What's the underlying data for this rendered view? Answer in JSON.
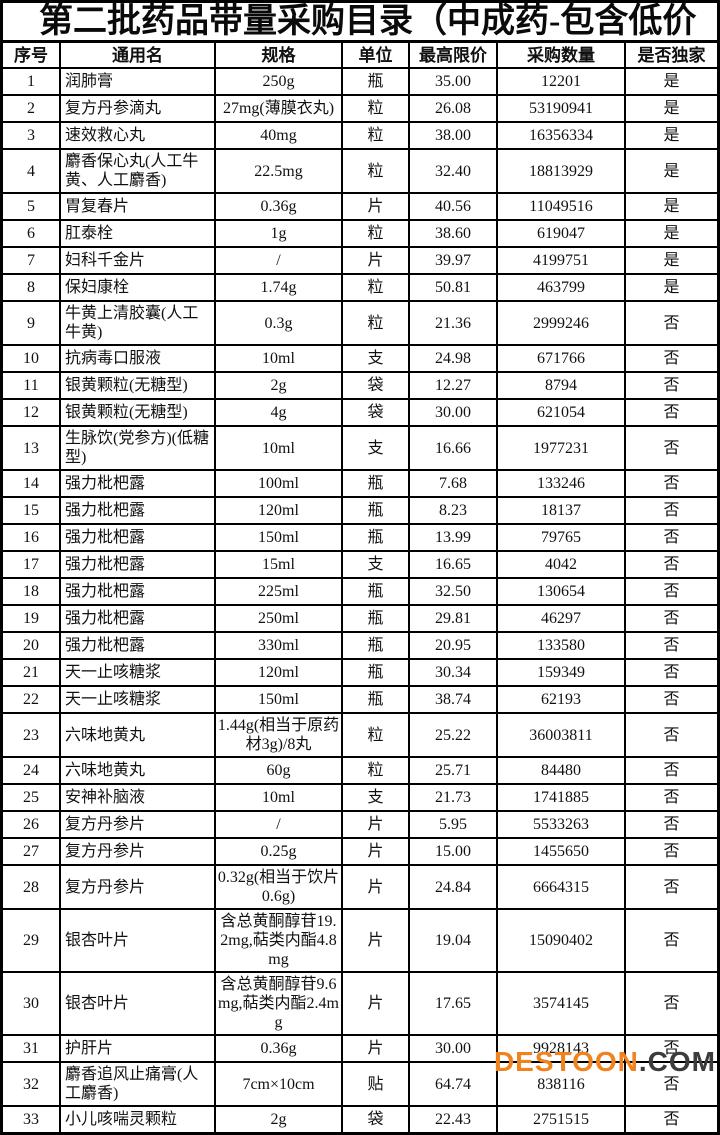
{
  "title": "第二批药品带量采购目录（中成药-包含低价",
  "watermark": {
    "part1": "DESTOON",
    "part2": ".COM",
    "color1": "#F0831E",
    "color2": "#3C3C3C"
  },
  "table": {
    "headers": [
      "序号",
      "通用名",
      "规格",
      "单位",
      "最高限价",
      "采购数量",
      "是否独家"
    ],
    "column_names": [
      "row-no",
      "generic-name",
      "spec",
      "unit",
      "max-price",
      "quantity",
      "exclusive"
    ],
    "rows": [
      [
        "1",
        "润肺膏",
        "250g",
        "瓶",
        "35.00",
        "12201",
        "是"
      ],
      [
        "2",
        "复方丹参滴丸",
        "27mg(薄膜衣丸)",
        "粒",
        "26.08",
        "53190941",
        "是"
      ],
      [
        "3",
        "速效救心丸",
        "40mg",
        "粒",
        "38.00",
        "16356334",
        "是"
      ],
      [
        "4",
        "麝香保心丸(人工牛黄、人工麝香)",
        "22.5mg",
        "粒",
        "32.40",
        "18813929",
        "是"
      ],
      [
        "5",
        "胃复春片",
        "0.36g",
        "片",
        "40.56",
        "11049516",
        "是"
      ],
      [
        "6",
        "肛泰栓",
        "1g",
        "粒",
        "38.60",
        "619047",
        "是"
      ],
      [
        "7",
        "妇科千金片",
        "/",
        "片",
        "39.97",
        "4199751",
        "是"
      ],
      [
        "8",
        "保妇康栓",
        "1.74g",
        "粒",
        "50.81",
        "463799",
        "是"
      ],
      [
        "9",
        "牛黄上清胶囊(人工牛黄)",
        "0.3g",
        "粒",
        "21.36",
        "2999246",
        "否"
      ],
      [
        "10",
        "抗病毒口服液",
        "10ml",
        "支",
        "24.98",
        "671766",
        "否"
      ],
      [
        "11",
        "银黄颗粒(无糖型)",
        "2g",
        "袋",
        "12.27",
        "8794",
        "否"
      ],
      [
        "12",
        "银黄颗粒(无糖型)",
        "4g",
        "袋",
        "30.00",
        "621054",
        "否"
      ],
      [
        "13",
        "生脉饮(党参方)(低糖型)",
        "10ml",
        "支",
        "16.66",
        "1977231",
        "否"
      ],
      [
        "14",
        "强力枇杷露",
        "100ml",
        "瓶",
        "7.68",
        "133246",
        "否"
      ],
      [
        "15",
        "强力枇杷露",
        "120ml",
        "瓶",
        "8.23",
        "18137",
        "否"
      ],
      [
        "16",
        "强力枇杷露",
        "150ml",
        "瓶",
        "13.99",
        "79765",
        "否"
      ],
      [
        "17",
        "强力枇杷露",
        "15ml",
        "支",
        "16.65",
        "4042",
        "否"
      ],
      [
        "18",
        "强力枇杷露",
        "225ml",
        "瓶",
        "32.50",
        "130654",
        "否"
      ],
      [
        "19",
        "强力枇杷露",
        "250ml",
        "瓶",
        "29.81",
        "46297",
        "否"
      ],
      [
        "20",
        "强力枇杷露",
        "330ml",
        "瓶",
        "20.95",
        "133580",
        "否"
      ],
      [
        "21",
        "天一止咳糖浆",
        "120ml",
        "瓶",
        "30.34",
        "159349",
        "否"
      ],
      [
        "22",
        "天一止咳糖浆",
        "150ml",
        "瓶",
        "38.74",
        "62193",
        "否"
      ],
      [
        "23",
        "六味地黄丸",
        "1.44g(相当于原药材3g)/8丸",
        "粒",
        "25.22",
        "36003811",
        "否"
      ],
      [
        "24",
        "六味地黄丸",
        "60g",
        "粒",
        "25.71",
        "84480",
        "否"
      ],
      [
        "25",
        "安神补脑液",
        "10ml",
        "支",
        "21.73",
        "1741885",
        "否"
      ],
      [
        "26",
        "复方丹参片",
        "/",
        "片",
        "5.95",
        "5533263",
        "否"
      ],
      [
        "27",
        "复方丹参片",
        "0.25g",
        "片",
        "15.00",
        "1455650",
        "否"
      ],
      [
        "28",
        "复方丹参片",
        "0.32g(相当于饮片0.6g)",
        "片",
        "24.84",
        "6664315",
        "否"
      ],
      [
        "29",
        "银杏叶片",
        "含总黄酮醇苷19.2mg,萜类内酯4.8mg",
        "片",
        "19.04",
        "15090402",
        "否"
      ],
      [
        "30",
        "银杏叶片",
        "含总黄酮醇苷9.6mg,萜类内酯2.4mg",
        "片",
        "17.65",
        "3574145",
        "否"
      ],
      [
        "31",
        "护肝片",
        "0.36g",
        "片",
        "30.00",
        "9928143",
        "否"
      ],
      [
        "32",
        "麝香追风止痛膏(人工麝香)",
        "7cm×10cm",
        "贴",
        "64.74",
        "838116",
        "否"
      ],
      [
        "33",
        "小儿咳喘灵颗粒",
        "2g",
        "袋",
        "22.43",
        "2751515",
        "否"
      ]
    ]
  }
}
